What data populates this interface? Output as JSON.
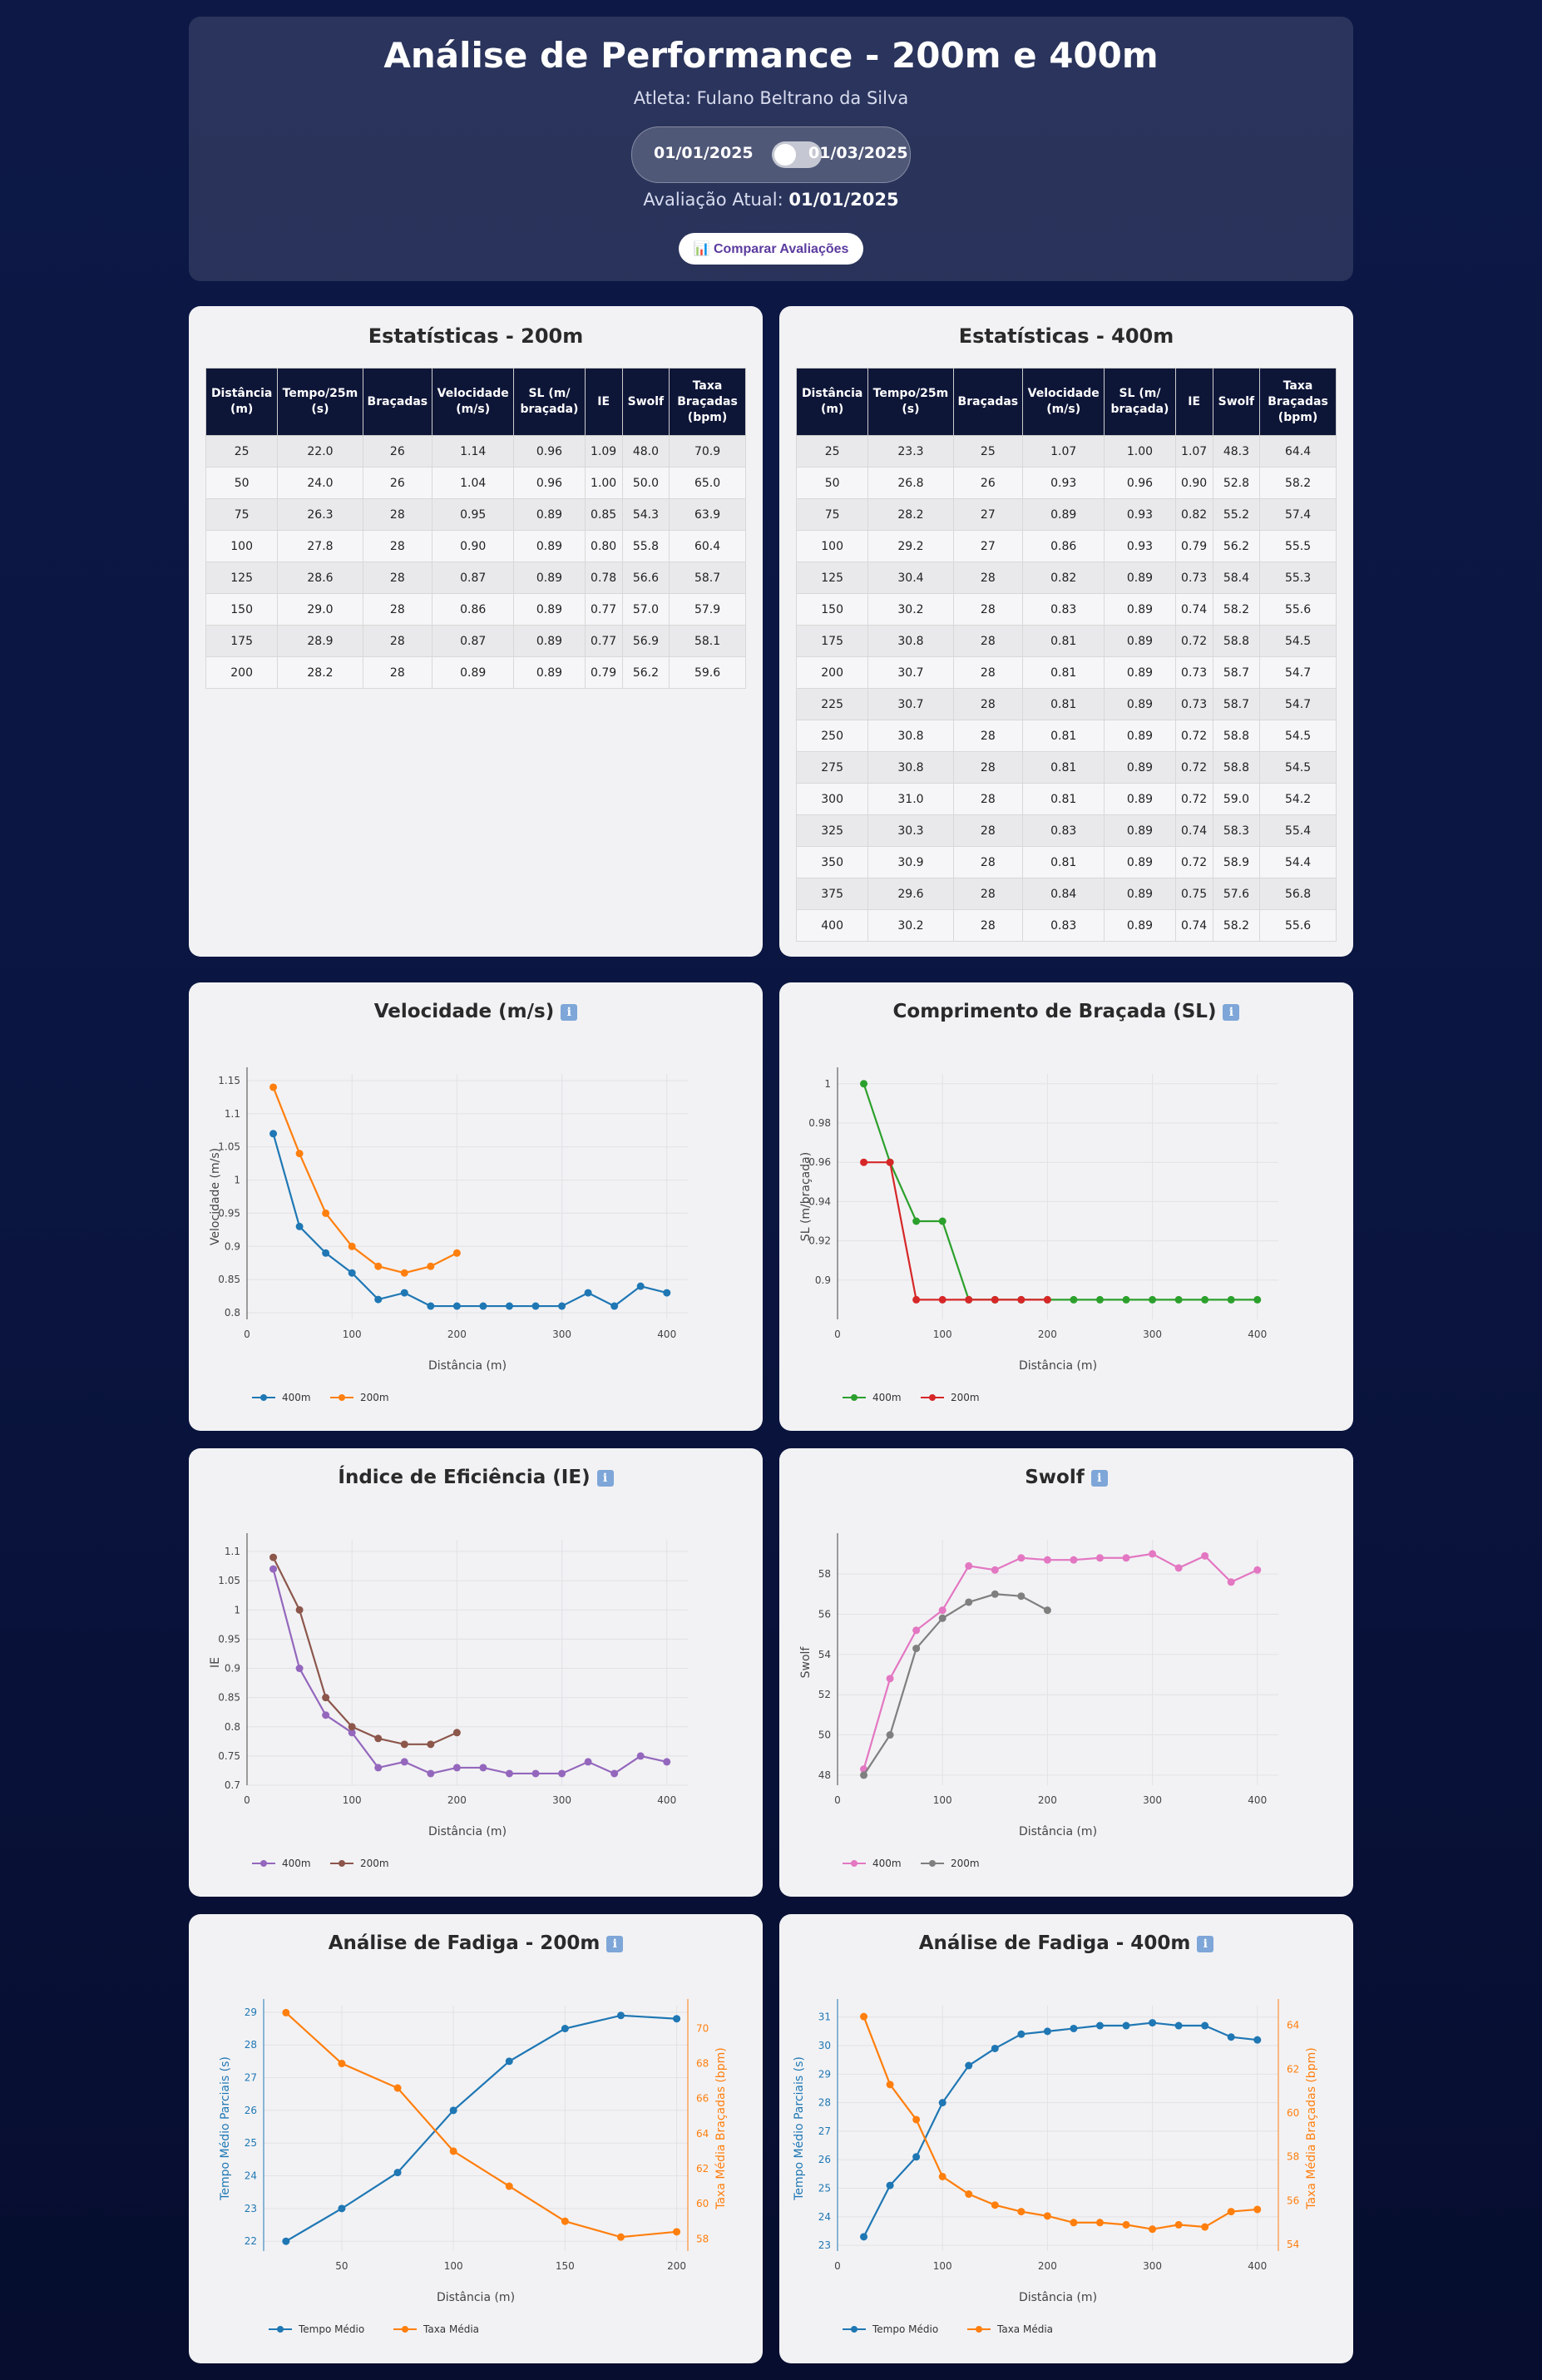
{
  "header": {
    "title": "Análise de Performance - 200m e 400m",
    "athlete": "Atleta: Fulano Beltrano da Silva",
    "date_left": "01/01/2025",
    "date_right": "01/03/2025",
    "current_label": "Avaliação Atual:",
    "current_value": "01/01/2025",
    "compare_button": "📊 Comparar Avaliações"
  },
  "stats200": {
    "title": "Estatísticas - 200m",
    "columns": [
      "Distância (m)",
      "Tempo/25m (s)",
      "Braçadas",
      "Velocidade (m/s)",
      "SL (m/ braçada)",
      "IE",
      "Swolf",
      "Taxa Braçadas (bpm)"
    ],
    "rows": [
      [
        "25",
        "22.0",
        "26",
        "1.14",
        "0.96",
        "1.09",
        "48.0",
        "70.9"
      ],
      [
        "50",
        "24.0",
        "26",
        "1.04",
        "0.96",
        "1.00",
        "50.0",
        "65.0"
      ],
      [
        "75",
        "26.3",
        "28",
        "0.95",
        "0.89",
        "0.85",
        "54.3",
        "63.9"
      ],
      [
        "100",
        "27.8",
        "28",
        "0.90",
        "0.89",
        "0.80",
        "55.8",
        "60.4"
      ],
      [
        "125",
        "28.6",
        "28",
        "0.87",
        "0.89",
        "0.78",
        "56.6",
        "58.7"
      ],
      [
        "150",
        "29.0",
        "28",
        "0.86",
        "0.89",
        "0.77",
        "57.0",
        "57.9"
      ],
      [
        "175",
        "28.9",
        "28",
        "0.87",
        "0.89",
        "0.77",
        "56.9",
        "58.1"
      ],
      [
        "200",
        "28.2",
        "28",
        "0.89",
        "0.89",
        "0.79",
        "56.2",
        "59.6"
      ]
    ]
  },
  "stats400": {
    "title": "Estatísticas - 400m",
    "columns": [
      "Distância (m)",
      "Tempo/25m (s)",
      "Braçadas",
      "Velocidade (m/s)",
      "SL (m/ braçada)",
      "IE",
      "Swolf",
      "Taxa Braçadas (bpm)"
    ],
    "rows": [
      [
        "25",
        "23.3",
        "25",
        "1.07",
        "1.00",
        "1.07",
        "48.3",
        "64.4"
      ],
      [
        "50",
        "26.8",
        "26",
        "0.93",
        "0.96",
        "0.90",
        "52.8",
        "58.2"
      ],
      [
        "75",
        "28.2",
        "27",
        "0.89",
        "0.93",
        "0.82",
        "55.2",
        "57.4"
      ],
      [
        "100",
        "29.2",
        "27",
        "0.86",
        "0.93",
        "0.79",
        "56.2",
        "55.5"
      ],
      [
        "125",
        "30.4",
        "28",
        "0.82",
        "0.89",
        "0.73",
        "58.4",
        "55.3"
      ],
      [
        "150",
        "30.2",
        "28",
        "0.83",
        "0.89",
        "0.74",
        "58.2",
        "55.6"
      ],
      [
        "175",
        "30.8",
        "28",
        "0.81",
        "0.89",
        "0.72",
        "58.8",
        "54.5"
      ],
      [
        "200",
        "30.7",
        "28",
        "0.81",
        "0.89",
        "0.73",
        "58.7",
        "54.7"
      ],
      [
        "225",
        "30.7",
        "28",
        "0.81",
        "0.89",
        "0.73",
        "58.7",
        "54.7"
      ],
      [
        "250",
        "30.8",
        "28",
        "0.81",
        "0.89",
        "0.72",
        "58.8",
        "54.5"
      ],
      [
        "275",
        "30.8",
        "28",
        "0.81",
        "0.89",
        "0.72",
        "58.8",
        "54.5"
      ],
      [
        "300",
        "31.0",
        "28",
        "0.81",
        "0.89",
        "0.72",
        "59.0",
        "54.2"
      ],
      [
        "325",
        "30.3",
        "28",
        "0.83",
        "0.89",
        "0.74",
        "58.3",
        "55.4"
      ],
      [
        "350",
        "30.9",
        "28",
        "0.81",
        "0.89",
        "0.72",
        "58.9",
        "54.4"
      ],
      [
        "375",
        "29.6",
        "28",
        "0.84",
        "0.89",
        "0.75",
        "57.6",
        "56.8"
      ],
      [
        "400",
        "30.2",
        "28",
        "0.83",
        "0.89",
        "0.74",
        "58.2",
        "55.6"
      ]
    ]
  },
  "colors": {
    "blue": "#1f77b4",
    "orange": "#ff7f0e",
    "green": "#2ca02c",
    "red": "#d62728",
    "purple": "#9467bd",
    "brown": "#8c564b",
    "pink": "#e377c2",
    "gray": "#7f7f7f"
  },
  "chart_data": [
    {
      "id": "vel",
      "type": "line",
      "title": "Velocidade (m/s)",
      "xlabel": "Distância (m)",
      "ylabel": "Velocidade (m/s)",
      "xlim": [
        0,
        420
      ],
      "ylim": [
        0.79,
        1.16
      ],
      "xticks": [
        0,
        100,
        200,
        300,
        400
      ],
      "yticks": [
        0.8,
        0.85,
        0.9,
        0.95,
        1,
        1.05,
        1.1,
        1.15
      ],
      "series": [
        {
          "name": "400m",
          "color": "#1f77b4",
          "x": [
            25,
            50,
            75,
            100,
            125,
            150,
            175,
            200,
            225,
            250,
            275,
            300,
            325,
            350,
            375,
            400
          ],
          "y": [
            1.07,
            0.93,
            0.89,
            0.86,
            0.82,
            0.83,
            0.81,
            0.81,
            0.81,
            0.81,
            0.81,
            0.81,
            0.83,
            0.81,
            0.84,
            0.83
          ]
        },
        {
          "name": "200m",
          "color": "#ff7f0e",
          "x": [
            25,
            50,
            75,
            100,
            125,
            150,
            175,
            200
          ],
          "y": [
            1.14,
            1.04,
            0.95,
            0.9,
            0.87,
            0.86,
            0.87,
            0.89
          ]
        }
      ]
    },
    {
      "id": "sl",
      "type": "line",
      "title": "Comprimento de Braçada (SL)",
      "xlabel": "Distância (m)",
      "ylabel": "SL (m/braçada)",
      "xlim": [
        0,
        420
      ],
      "ylim": [
        0.88,
        1.005
      ],
      "xticks": [
        0,
        100,
        200,
        300,
        400
      ],
      "yticks": [
        0.9,
        0.92,
        0.94,
        0.96,
        0.98,
        1
      ],
      "series": [
        {
          "name": "400m",
          "color": "#2ca02c",
          "x": [
            25,
            50,
            75,
            100,
            125,
            150,
            175,
            200,
            225,
            250,
            275,
            300,
            325,
            350,
            375,
            400
          ],
          "y": [
            1.0,
            0.96,
            0.93,
            0.93,
            0.89,
            0.89,
            0.89,
            0.89,
            0.89,
            0.89,
            0.89,
            0.89,
            0.89,
            0.89,
            0.89,
            0.89
          ]
        },
        {
          "name": "200m",
          "color": "#d62728",
          "x": [
            25,
            50,
            75,
            100,
            125,
            150,
            175,
            200
          ],
          "y": [
            0.96,
            0.96,
            0.89,
            0.89,
            0.89,
            0.89,
            0.89,
            0.89
          ]
        }
      ]
    },
    {
      "id": "ie",
      "type": "line",
      "title": "Índice de Eficiência (IE)",
      "xlabel": "Distância (m)",
      "ylabel": "IE",
      "xlim": [
        0,
        420
      ],
      "ylim": [
        0.7,
        1.12
      ],
      "xticks": [
        0,
        100,
        200,
        300,
        400
      ],
      "yticks": [
        0.7,
        0.75,
        0.8,
        0.85,
        0.9,
        0.95,
        1,
        1.05,
        1.1
      ],
      "series": [
        {
          "name": "400m",
          "color": "#9467bd",
          "x": [
            25,
            50,
            75,
            100,
            125,
            150,
            175,
            200,
            225,
            250,
            275,
            300,
            325,
            350,
            375,
            400
          ],
          "y": [
            1.07,
            0.9,
            0.82,
            0.79,
            0.73,
            0.74,
            0.72,
            0.73,
            0.73,
            0.72,
            0.72,
            0.72,
            0.74,
            0.72,
            0.75,
            0.74
          ]
        },
        {
          "name": "200m",
          "color": "#8c564b",
          "x": [
            25,
            50,
            75,
            100,
            125,
            150,
            175,
            200
          ],
          "y": [
            1.09,
            1.0,
            0.85,
            0.8,
            0.78,
            0.77,
            0.77,
            0.79
          ]
        }
      ]
    },
    {
      "id": "swolf",
      "type": "line",
      "title": "Swolf",
      "xlabel": "Distância (m)",
      "ylabel": "Swolf",
      "xlim": [
        0,
        420
      ],
      "ylim": [
        47.5,
        59.7
      ],
      "xticks": [
        0,
        100,
        200,
        300,
        400
      ],
      "yticks": [
        48,
        50,
        52,
        54,
        56,
        58
      ],
      "series": [
        {
          "name": "400m",
          "color": "#e377c2",
          "x": [
            25,
            50,
            75,
            100,
            125,
            150,
            175,
            200,
            225,
            250,
            275,
            300,
            325,
            350,
            375,
            400
          ],
          "y": [
            48.3,
            52.8,
            55.2,
            56.2,
            58.4,
            58.2,
            58.8,
            58.7,
            58.7,
            58.8,
            58.8,
            59.0,
            58.3,
            58.9,
            57.6,
            58.2
          ]
        },
        {
          "name": "200m",
          "color": "#7f7f7f",
          "x": [
            25,
            50,
            75,
            100,
            125,
            150,
            175,
            200
          ],
          "y": [
            48.0,
            50.0,
            54.3,
            55.8,
            56.6,
            57.0,
            56.9,
            56.2
          ]
        }
      ]
    },
    {
      "id": "fat200",
      "type": "line",
      "title": "Análise de Fadiga - 200m",
      "xlabel": "Distância (m)",
      "ylabel": "Tempo Médio Parciais (s)",
      "y2label": "Taxa Média Braçadas (bpm)",
      "xlim": [
        15,
        205
      ],
      "ylim": [
        21.7,
        29.2
      ],
      "y2lim": [
        57.3,
        71.3
      ],
      "xticks": [
        50,
        100,
        150,
        200
      ],
      "yticks": [
        22,
        23,
        24,
        25,
        26,
        27,
        28,
        29
      ],
      "y2ticks": [
        58,
        60,
        62,
        64,
        66,
        68,
        70
      ],
      "series": [
        {
          "name": "Tempo Médio",
          "axis": "y",
          "color": "#1f77b4",
          "x": [
            25,
            50,
            75,
            100,
            125,
            150,
            175,
            200
          ],
          "y": [
            22.0,
            23.0,
            24.1,
            26.0,
            27.5,
            28.5,
            28.9,
            28.8
          ]
        },
        {
          "name": "Taxa Média",
          "axis": "y2",
          "color": "#ff7f0e",
          "x": [
            25,
            50,
            75,
            100,
            125,
            150,
            175,
            200
          ],
          "y": [
            70.9,
            68.0,
            66.6,
            63.0,
            61.0,
            59.0,
            58.1,
            58.4
          ]
        }
      ]
    },
    {
      "id": "fat400",
      "type": "line",
      "title": "Análise de Fadiga - 400m",
      "xlabel": "Distância (m)",
      "ylabel": "Tempo Médio Parciais (s)",
      "y2label": "Taxa Média Braçadas (bpm)",
      "xlim": [
        0,
        420
      ],
      "ylim": [
        22.8,
        31.4
      ],
      "y2lim": [
        53.7,
        64.9
      ],
      "xticks": [
        0,
        100,
        200,
        300,
        400
      ],
      "yticks": [
        23,
        24,
        25,
        26,
        27,
        28,
        29,
        30,
        31
      ],
      "y2ticks": [
        54,
        56,
        58,
        60,
        62,
        64
      ],
      "series": [
        {
          "name": "Tempo Médio",
          "axis": "y",
          "color": "#1f77b4",
          "x": [
            25,
            50,
            75,
            100,
            125,
            150,
            175,
            200,
            225,
            250,
            275,
            300,
            325,
            350,
            375,
            400
          ],
          "y": [
            23.3,
            25.1,
            26.1,
            28.0,
            29.3,
            29.9,
            30.4,
            30.5,
            30.6,
            30.7,
            30.7,
            30.8,
            30.7,
            30.7,
            30.3,
            30.2
          ]
        },
        {
          "name": "Taxa Média",
          "axis": "y2",
          "color": "#ff7f0e",
          "x": [
            25,
            50,
            75,
            100,
            125,
            150,
            175,
            200,
            225,
            250,
            275,
            300,
            325,
            350,
            375,
            400
          ],
          "y": [
            64.4,
            61.3,
            59.7,
            57.1,
            56.3,
            55.8,
            55.5,
            55.3,
            55.0,
            55.0,
            54.9,
            54.7,
            54.9,
            54.8,
            55.5,
            55.6
          ]
        }
      ]
    }
  ]
}
